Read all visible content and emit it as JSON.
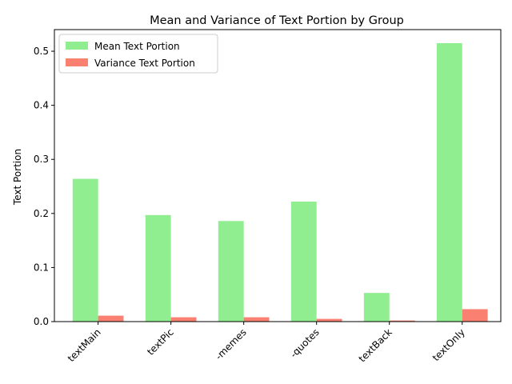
{
  "chart_data": {
    "type": "bar",
    "title": "Mean and Variance of Text Portion by Group",
    "xlabel": "",
    "ylabel": "Text Portion",
    "categories": [
      "textMain",
      "textPic",
      "-memes",
      "-quotes",
      "textBack",
      "textOnly"
    ],
    "series": [
      {
        "name": "Mean Text Portion",
        "color": "#90ee90",
        "values": [
          0.264,
          0.197,
          0.186,
          0.222,
          0.053,
          0.515
        ]
      },
      {
        "name": "Variance Text Portion",
        "color": "#fa8072",
        "values": [
          0.011,
          0.008,
          0.008,
          0.005,
          0.002,
          0.023
        ]
      }
    ],
    "ylim": [
      0,
      0.54
    ],
    "yticks": [
      "0.0",
      "0.1",
      "0.2",
      "0.3",
      "0.4",
      "0.5"
    ],
    "legend_position": "top-left",
    "grid": false
  }
}
